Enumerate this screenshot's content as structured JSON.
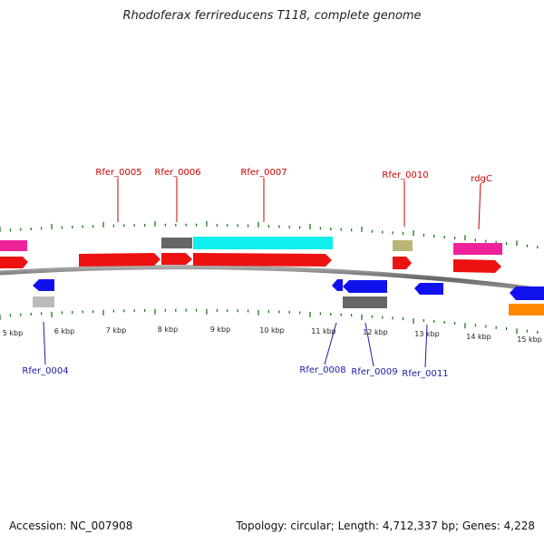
{
  "title": "Rhodoferax ferrireducens T118, complete genome",
  "footer": {
    "accession": "Accession: NC_007908",
    "topology": "Topology: circular; Length: 4,712,337 bp; Genes: 4,228"
  },
  "kbp_labels": [
    "5 kbp",
    "6 kbp",
    "7 kbp",
    "8 kbp",
    "9 kbp",
    "10 kbp",
    "11 kbp",
    "12 kbp",
    "13 kbp",
    "14 kbp",
    "15 kbp"
  ],
  "genes_top_labels": [
    "Rfer_0005",
    "Rfer_0006",
    "Rfer_0007",
    "Rfer_0010",
    "rdgC"
  ],
  "genes_bottom_labels": [
    "Rfer_0004",
    "Rfer_0008",
    "Rfer_0009",
    "Rfer_0011"
  ],
  "colors": {
    "red": "#ee1111",
    "pink": "#ee2299",
    "cyan": "#11eeee",
    "gray": "#666666",
    "lightgray": "#bbbbbb",
    "olive": "#bbb577",
    "blue": "#1111ee",
    "orange": "#ff8800",
    "tick": "#1a7a1a",
    "backbone": "#777777"
  }
}
